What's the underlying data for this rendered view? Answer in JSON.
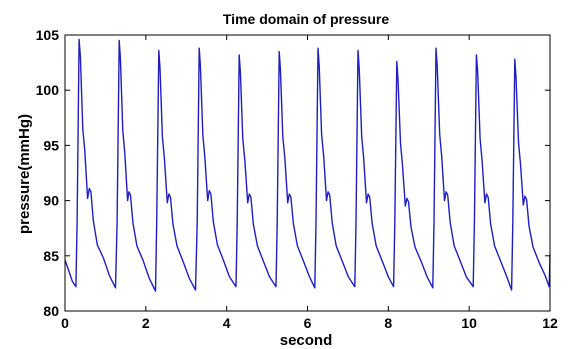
{
  "chart_data": {
    "type": "line",
    "title": "Time domain of pressure",
    "xlabel": "second",
    "ylabel": "pressure(mmHg)",
    "xlim": [
      0,
      12
    ],
    "ylim": [
      80,
      105
    ],
    "xticks": [
      0,
      2,
      4,
      6,
      8,
      10,
      12
    ],
    "yticks": [
      80,
      85,
      90,
      95,
      100,
      105
    ],
    "grid": false,
    "series": [
      {
        "color": "#1f1fbf",
        "x": [
          0,
          0.08,
          0.18,
          0.27,
          0.3,
          0.35,
          0.38,
          0.44,
          0.49,
          0.56,
          0.6,
          0.64,
          0.7,
          0.8,
          0.95,
          1.1,
          1.25,
          1.29,
          1.34,
          1.37,
          1.43,
          1.48,
          1.55,
          1.58,
          1.62,
          1.68,
          1.78,
          1.93,
          2.08,
          2.24,
          2.27,
          2.32,
          2.35,
          2.41,
          2.46,
          2.53,
          2.57,
          2.61,
          2.67,
          2.77,
          2.92,
          3.07,
          3.23,
          3.27,
          3.32,
          3.35,
          3.41,
          3.46,
          3.53,
          3.57,
          3.61,
          3.67,
          3.77,
          3.92,
          4.07,
          4.23,
          4.26,
          4.31,
          4.34,
          4.4,
          4.45,
          4.52,
          4.56,
          4.6,
          4.66,
          4.76,
          4.91,
          5.06,
          5.22,
          5.25,
          5.3,
          5.33,
          5.39,
          5.44,
          5.51,
          5.55,
          5.59,
          5.65,
          5.75,
          5.9,
          6.05,
          6.18,
          6.21,
          6.26,
          6.29,
          6.35,
          6.4,
          6.47,
          6.51,
          6.55,
          6.61,
          6.71,
          6.86,
          7.01,
          7.17,
          7.2,
          7.25,
          7.28,
          7.34,
          7.39,
          7.46,
          7.5,
          7.54,
          7.6,
          7.7,
          7.85,
          8.0,
          8.13,
          8.16,
          8.21,
          8.24,
          8.3,
          8.35,
          8.42,
          8.46,
          8.5,
          8.56,
          8.66,
          8.81,
          8.96,
          9.1,
          9.13,
          9.18,
          9.21,
          9.27,
          9.32,
          9.39,
          9.43,
          9.47,
          9.53,
          9.63,
          9.78,
          9.93,
          10.1,
          10.13,
          10.18,
          10.21,
          10.27,
          10.32,
          10.39,
          10.43,
          10.47,
          10.53,
          10.63,
          10.78,
          10.93,
          11.05,
          11.08,
          11.13,
          11.16,
          11.22,
          11.27,
          11.34,
          11.38,
          11.42,
          11.48,
          11.58,
          11.73,
          11.88,
          11.98,
          12.02,
          12.07,
          12.1,
          12.16
        ],
        "y": [
          84.6,
          83.8,
          82.7,
          82.2,
          88.0,
          104.6,
          103.0,
          96.5,
          94.5,
          90.2,
          91.1,
          90.8,
          88.2,
          86.0,
          84.8,
          83.2,
          82.1,
          88.0,
          104.5,
          102.9,
          96.3,
          94.3,
          90.0,
          90.8,
          90.5,
          88.0,
          85.9,
          84.6,
          83.0,
          81.8,
          88.0,
          103.6,
          102.0,
          95.8,
          93.8,
          89.8,
          90.6,
          90.3,
          87.9,
          85.9,
          84.5,
          83.0,
          81.9,
          88.0,
          103.8,
          102.2,
          96.0,
          94.0,
          90.0,
          90.9,
          90.6,
          88.1,
          86.0,
          84.6,
          83.1,
          82.2,
          88.0,
          103.2,
          101.6,
          95.6,
          93.6,
          89.8,
          90.6,
          90.3,
          87.9,
          85.9,
          84.5,
          83.1,
          82.2,
          88.0,
          103.5,
          101.9,
          95.8,
          93.8,
          89.8,
          90.6,
          90.3,
          87.9,
          85.9,
          84.5,
          83.1,
          82.1,
          88.0,
          103.8,
          102.2,
          96.0,
          94.0,
          90.0,
          90.8,
          90.5,
          88.0,
          85.9,
          84.5,
          83.1,
          82.2,
          88.0,
          103.6,
          102.0,
          95.8,
          93.8,
          89.8,
          90.6,
          90.3,
          87.9,
          85.9,
          84.5,
          83.1,
          82.2,
          88.0,
          102.6,
          101.0,
          95.2,
          93.2,
          89.5,
          90.2,
          89.9,
          87.6,
          85.8,
          84.5,
          83.1,
          82.1,
          88.0,
          103.8,
          102.2,
          96.0,
          94.0,
          90.0,
          90.8,
          90.5,
          88.0,
          85.9,
          84.5,
          83.1,
          82.2,
          88.0,
          103.2,
          101.6,
          95.6,
          93.6,
          89.8,
          90.6,
          90.3,
          87.9,
          85.9,
          84.5,
          83.1,
          81.9,
          88.0,
          102.8,
          101.2,
          95.3,
          93.3,
          89.6,
          90.4,
          90.1,
          87.7,
          85.8,
          84.4,
          83.2,
          82.2,
          88.0,
          103.3,
          101.8,
          95.6
        ]
      }
    ]
  }
}
